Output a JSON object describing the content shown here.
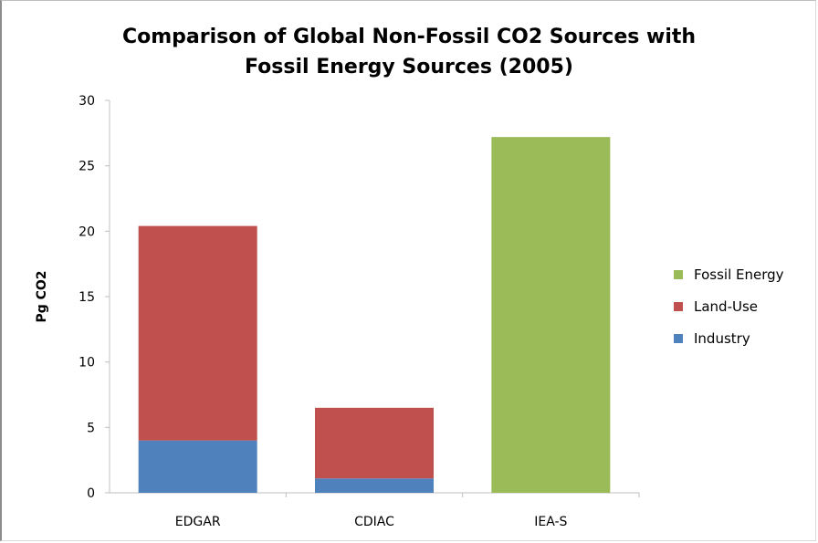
{
  "chart_data": {
    "type": "bar",
    "stacked": true,
    "title_line1": "Comparison of Global Non-Fossil CO2 Sources with",
    "title_line2": "Fossil Energy Sources (2005)",
    "xlabel": "",
    "ylabel": "Pg CO2",
    "ylim": [
      0,
      30
    ],
    "yticks": [
      0,
      5,
      10,
      15,
      20,
      25,
      30
    ],
    "categories": [
      "EDGAR",
      "CDIAC",
      "IEA-S"
    ],
    "series": [
      {
        "name": "Industry",
        "color": "#4f81bd",
        "values": [
          4.0,
          1.1,
          0
        ]
      },
      {
        "name": "Land-Use",
        "color": "#c0504d",
        "values": [
          16.4,
          5.4,
          0
        ]
      },
      {
        "name": "Fossil Energy",
        "color": "#9bbb59",
        "values": [
          0,
          0,
          27.2
        ]
      }
    ],
    "legend_order": [
      "Fossil Energy",
      "Land-Use",
      "Industry"
    ],
    "legend_position": "right",
    "grid": false
  }
}
